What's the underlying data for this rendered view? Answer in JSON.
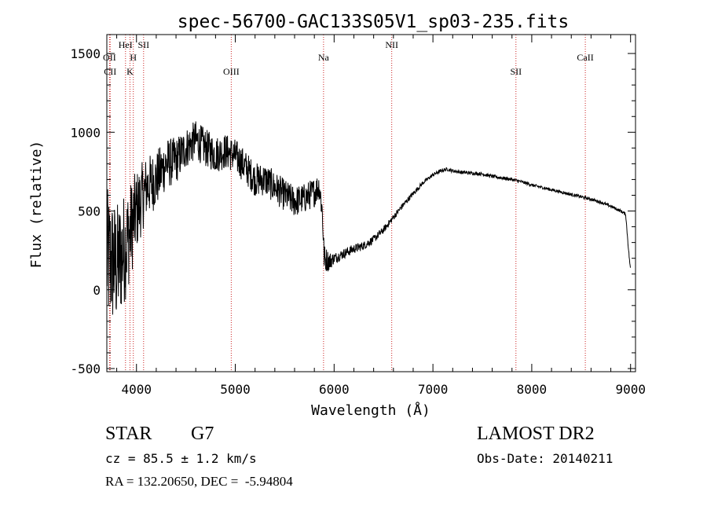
{
  "chart_data": {
    "type": "line",
    "title": "spec-56700-GAC133S05V1_sp03-235.fits",
    "xlabel": "Wavelength (Å)",
    "ylabel": "Flux (relative)",
    "xlim": [
      3700,
      9050
    ],
    "ylim": [
      -520,
      1620
    ],
    "xticks": [
      4000,
      5000,
      6000,
      7000,
      8000,
      9000
    ],
    "yticks": [
      -500,
      0,
      500,
      1000,
      1500
    ],
    "line_color": "#000000",
    "marker_color": "#cc2222",
    "lines": [
      {
        "name": "OII",
        "x": 3727,
        "row": 0
      },
      {
        "name": "CII",
        "x": 3734,
        "row": 1
      },
      {
        "name": "HeI",
        "x": 3889,
        "row": -1
      },
      {
        "name": "H",
        "x": 3968,
        "row": 0
      },
      {
        "name": "K",
        "x": 3934,
        "row": 1
      },
      {
        "name": "SII",
        "x": 4072,
        "row": -1
      },
      {
        "name": "OIII",
        "x": 4959,
        "row": 1
      },
      {
        "name": "Na",
        "x": 5893,
        "row": 0
      },
      {
        "name": "NII",
        "x": 6583,
        "row": -1
      },
      {
        "name": "SII",
        "x": 7840,
        "row": 1
      },
      {
        "name": "CaII",
        "x": 8542,
        "row": 0
      }
    ],
    "spectrum_anchors": {
      "x": [
        3700,
        3800,
        3900,
        4000,
        4100,
        4200,
        4300,
        4400,
        4500,
        4600,
        4700,
        4800,
        4900,
        5000,
        5100,
        5200,
        5300,
        5400,
        5500,
        5600,
        5700,
        5800,
        5850,
        5880,
        5900,
        5950,
        6000,
        6100,
        6200,
        6300,
        6400,
        6500,
        6600,
        6700,
        6800,
        6900,
        7000,
        7100,
        7150,
        7200,
        7300,
        7400,
        7500,
        7600,
        7700,
        7800,
        7900,
        8000,
        8100,
        8200,
        8300,
        8400,
        8500,
        8600,
        8700,
        8800,
        8900,
        8950,
        8980,
        9000
      ],
      "y": [
        200,
        150,
        300,
        500,
        650,
        700,
        800,
        820,
        900,
        950,
        900,
        860,
        880,
        850,
        780,
        700,
        700,
        650,
        600,
        560,
        580,
        620,
        660,
        500,
        200,
        180,
        200,
        230,
        260,
        280,
        320,
        380,
        460,
        540,
        610,
        680,
        730,
        760,
        765,
        755,
        745,
        740,
        735,
        720,
        710,
        700,
        685,
        665,
        650,
        635,
        620,
        605,
        590,
        575,
        555,
        530,
        500,
        480,
        250,
        120
      ]
    },
    "noise_amplitude": {
      "x": [
        3700,
        3850,
        4000,
        4100,
        4500,
        5000,
        5600,
        5900,
        6000,
        6600,
        7000,
        8000,
        9000
      ],
      "y": [
        450,
        380,
        260,
        200,
        130,
        110,
        100,
        90,
        35,
        20,
        12,
        10,
        10
      ]
    }
  },
  "info": {
    "object_class": "STAR",
    "subclass": "G7",
    "survey": "LAMOST DR2",
    "cz": "cz = 85.5 ± 1.2 km/s",
    "obs_date": "Obs-Date: 20140211",
    "radec": "RA = 132.20650, DEC =  -5.94804"
  }
}
